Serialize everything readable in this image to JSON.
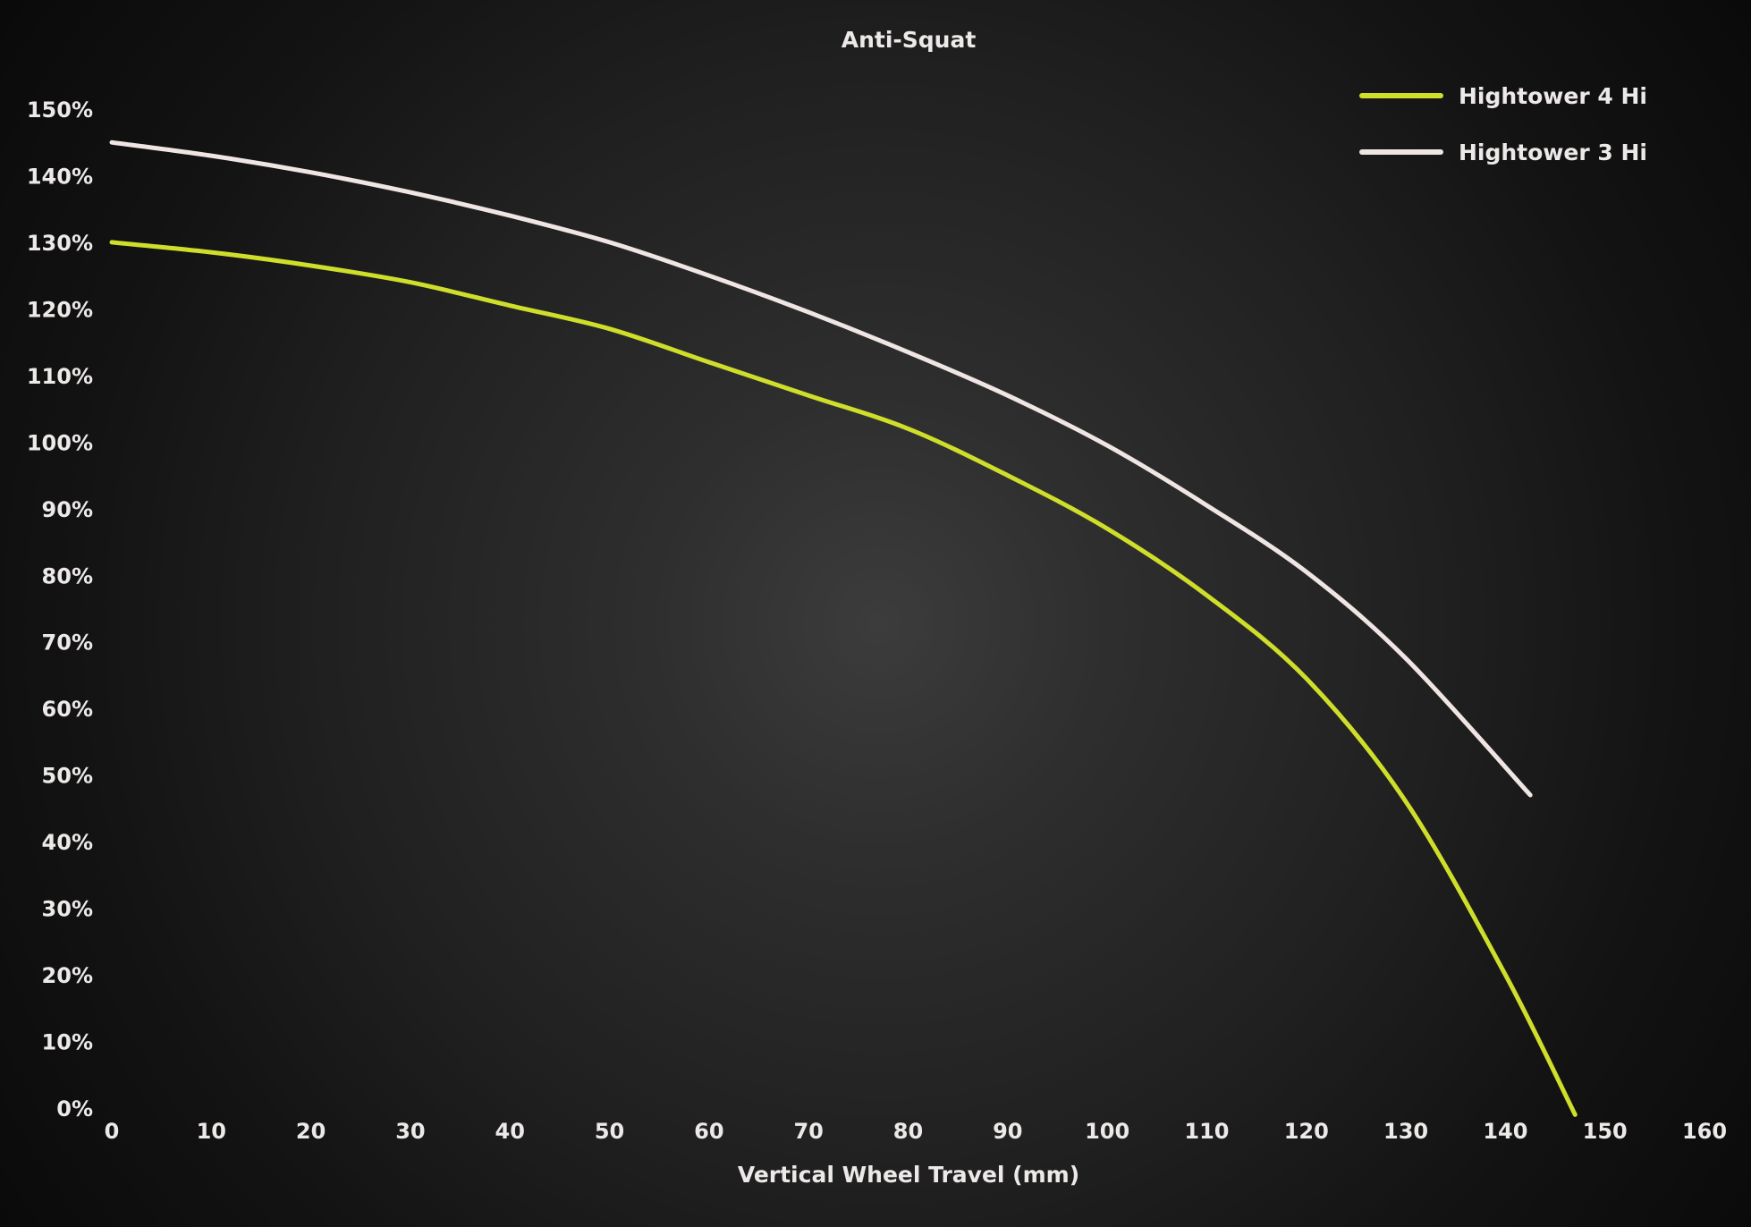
{
  "chart_data": {
    "type": "line",
    "title": "Anti-Squat",
    "xlabel": "Vertical Wheel Travel (mm)",
    "ylabel": "",
    "xlim": [
      0,
      160
    ],
    "ylim": [
      0,
      150
    ],
    "x_ticks": [
      0,
      10,
      20,
      30,
      40,
      50,
      60,
      70,
      80,
      90,
      100,
      110,
      120,
      130,
      140,
      150,
      160
    ],
    "x_tick_labels": [
      "0",
      "10",
      "20",
      "30",
      "40",
      "50",
      "60",
      "70",
      "80",
      "90",
      "100",
      "110",
      "120",
      "130",
      "140",
      "150",
      "160"
    ],
    "y_ticks": [
      0,
      10,
      20,
      30,
      40,
      50,
      60,
      70,
      80,
      90,
      100,
      110,
      120,
      130,
      140,
      150
    ],
    "y_tick_labels": [
      "0%",
      "10%",
      "20%",
      "30%",
      "40%",
      "50%",
      "60%",
      "70%",
      "80%",
      "90%",
      "100%",
      "110%",
      "120%",
      "130%",
      "140%",
      "150%"
    ],
    "grid": false,
    "legend_position": "top-right",
    "series": [
      {
        "name": "Hightower 4 Hi",
        "color": "#cfde2a",
        "x": [
          0,
          10,
          20,
          30,
          40,
          50,
          60,
          70,
          80,
          90,
          100,
          110,
          120,
          130,
          140,
          147
        ],
        "y": [
          130,
          128.5,
          126.5,
          124,
          120.5,
          117,
          112,
          107,
          102,
          95,
          87,
          77,
          64.5,
          46,
          20,
          -1
        ]
      },
      {
        "name": "Hightower 3 Hi",
        "color": "#efe6e4",
        "x": [
          0,
          10,
          20,
          30,
          40,
          50,
          60,
          70,
          80,
          90,
          100,
          110,
          120,
          130,
          142.5
        ],
        "y": [
          145,
          143,
          140.5,
          137.5,
          134,
          130,
          125,
          119.5,
          113.5,
          107,
          99.5,
          90.5,
          80.5,
          67.5,
          47
        ]
      }
    ]
  }
}
